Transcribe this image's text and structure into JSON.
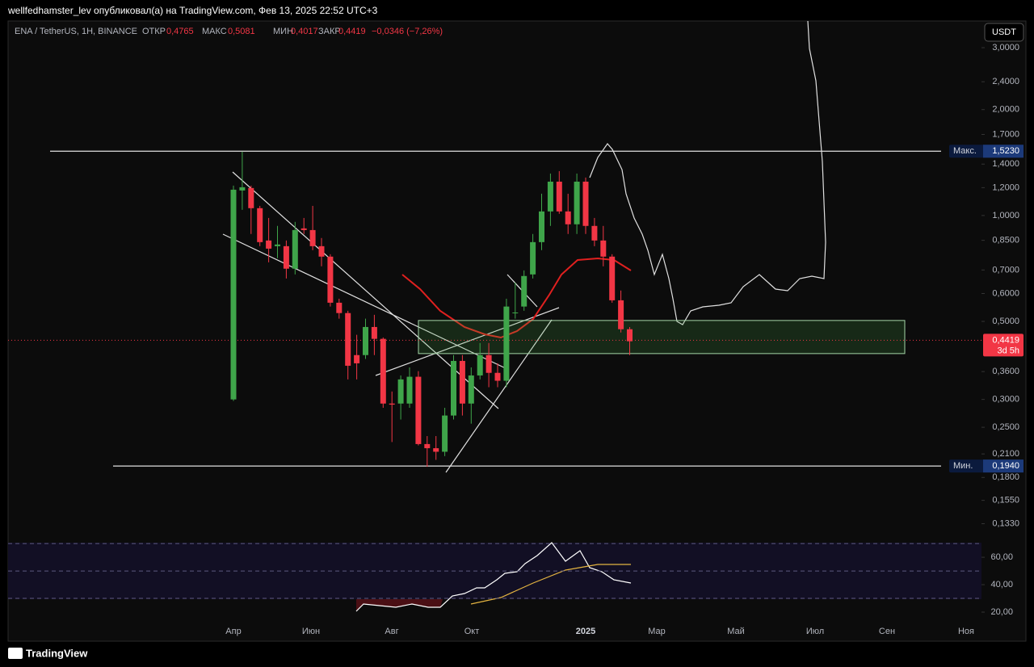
{
  "header": {
    "title": "wellfedhamster_lev опубликовал(а) на TradingView.com, Фев 13, 2025 22:52 UTC+3"
  },
  "legend": {
    "symbol": "ENA / TetherUS, 1H, BINANCE",
    "open_label": "ОТКР",
    "open": "0,4765",
    "high_label": "МАКС",
    "high": "0,5081",
    "low_label": "МИН",
    "low": "0,4017",
    "close_label": "ЗАКР",
    "close": "0,4419",
    "change": "−0,0346 (−7,26%)"
  },
  "currency": "USDT",
  "footer": {
    "brand": "TradingView"
  },
  "chart_data": {
    "type": "candlestick",
    "log_scale": true,
    "ylim": [
      0.12,
      3.572
    ],
    "yticks": [
      {
        "value": 3,
        "label": "3,0000"
      },
      {
        "value": 2.4,
        "label": "2,4000"
      },
      {
        "value": 2,
        "label": "2,0000"
      },
      {
        "value": 1.7,
        "label": "1,7000"
      },
      {
        "value": 1.4,
        "label": "1,4000"
      },
      {
        "value": 1.2,
        "label": "1,2000"
      },
      {
        "value": 1,
        "label": "1,0000"
      },
      {
        "value": 0.85,
        "label": "0,8500"
      },
      {
        "value": 0.7,
        "label": "0,7000"
      },
      {
        "value": 0.6,
        "label": "0,6000"
      },
      {
        "value": 0.5,
        "label": "0,5000"
      },
      {
        "value": 0.36,
        "label": "0,3600"
      },
      {
        "value": 0.3,
        "label": "0,3000"
      },
      {
        "value": 0.25,
        "label": "0,2500"
      },
      {
        "value": 0.21,
        "label": "0,2100"
      },
      {
        "value": 0.18,
        "label": "0,1800"
      },
      {
        "value": 0.155,
        "label": "0,1550"
      },
      {
        "value": 0.133,
        "label": "0,1330"
      }
    ],
    "xticks": [
      "Апр",
      "Июн",
      "Авг",
      "Окт",
      "2025",
      "Мар",
      "Май",
      "Июл",
      "Сен",
      "Ноя"
    ],
    "up_color": "#3fa54a",
    "down_color": "#f23645",
    "max_line": {
      "label": "Макс.",
      "value": 1.523,
      "value_label": "1,5230"
    },
    "min_line": {
      "label": "Мин.",
      "value": 0.194,
      "value_label": "0,1940"
    },
    "last_price": {
      "value": 0.4419,
      "value_label": "0,4419",
      "countdown": "3d 5h"
    },
    "zone": [
      0.405,
      0.503
    ],
    "candles": [
      {
        "o": 0.3,
        "h": 1.216,
        "l": 0.297,
        "c": 1.184
      },
      {
        "o": 1.178,
        "h": 1.518,
        "l": 1.038,
        "c": 1.203
      },
      {
        "o": 1.197,
        "h": 1.216,
        "l": 0.886,
        "c": 1.049
      },
      {
        "o": 1.049,
        "h": 1.065,
        "l": 0.818,
        "c": 0.84
      },
      {
        "o": 0.849,
        "h": 0.984,
        "l": 0.736,
        "c": 0.805
      },
      {
        "o": 0.818,
        "h": 0.934,
        "l": 0.756,
        "c": 0.827
      },
      {
        "o": 0.818,
        "h": 0.849,
        "l": 0.662,
        "c": 0.706
      },
      {
        "o": 0.706,
        "h": 0.959,
        "l": 0.68,
        "c": 0.909
      },
      {
        "o": 0.919,
        "h": 0.984,
        "l": 0.886,
        "c": 0.909
      },
      {
        "o": 0.909,
        "h": 1.065,
        "l": 0.797,
        "c": 0.818
      },
      {
        "o": 0.818,
        "h": 0.863,
        "l": 0.717,
        "c": 0.764
      },
      {
        "o": 0.764,
        "h": 0.776,
        "l": 0.551,
        "c": 0.565
      },
      {
        "o": 0.565,
        "h": 0.58,
        "l": 0.509,
        "c": 0.528
      },
      {
        "o": 0.528,
        "h": 0.536,
        "l": 0.342,
        "c": 0.374
      },
      {
        "o": 0.401,
        "h": 0.458,
        "l": 0.342,
        "c": 0.38
      },
      {
        "o": 0.401,
        "h": 0.509,
        "l": 0.391,
        "c": 0.482
      },
      {
        "o": 0.482,
        "h": 0.522,
        "l": 0.401,
        "c": 0.446
      },
      {
        "o": 0.446,
        "h": 0.45,
        "l": 0.284,
        "c": 0.292
      },
      {
        "o": 0.292,
        "h": 0.316,
        "l": 0.227,
        "c": 0.29
      },
      {
        "o": 0.292,
        "h": 0.351,
        "l": 0.263,
        "c": 0.342
      },
      {
        "o": 0.292,
        "h": 0.37,
        "l": 0.284,
        "c": 0.348
      },
      {
        "o": 0.348,
        "h": 0.361,
        "l": 0.222,
        "c": 0.224
      },
      {
        "o": 0.224,
        "h": 0.236,
        "l": 0.193,
        "c": 0.218
      },
      {
        "o": 0.218,
        "h": 0.236,
        "l": 0.202,
        "c": 0.213
      },
      {
        "o": 0.213,
        "h": 0.284,
        "l": 0.207,
        "c": 0.27
      },
      {
        "o": 0.27,
        "h": 0.401,
        "l": 0.263,
        "c": 0.386
      },
      {
        "o": 0.386,
        "h": 0.401,
        "l": 0.27,
        "c": 0.292
      },
      {
        "o": 0.292,
        "h": 0.37,
        "l": 0.256,
        "c": 0.351
      },
      {
        "o": 0.351,
        "h": 0.434,
        "l": 0.342,
        "c": 0.401
      },
      {
        "o": 0.401,
        "h": 0.434,
        "l": 0.325,
        "c": 0.357
      },
      {
        "o": 0.357,
        "h": 0.38,
        "l": 0.325,
        "c": 0.339
      },
      {
        "o": 0.339,
        "h": 0.58,
        "l": 0.325,
        "c": 0.551
      },
      {
        "o": 0.528,
        "h": 0.645,
        "l": 0.509,
        "c": 0.53
      },
      {
        "o": 0.551,
        "h": 0.698,
        "l": 0.536,
        "c": 0.673
      },
      {
        "o": 0.68,
        "h": 0.886,
        "l": 0.662,
        "c": 0.84
      },
      {
        "o": 0.84,
        "h": 1.153,
        "l": 0.797,
        "c": 1.027
      },
      {
        "o": 1.027,
        "h": 1.316,
        "l": 0.934,
        "c": 1.248
      },
      {
        "o": 1.248,
        "h": 1.337,
        "l": 1.011,
        "c": 1.027
      },
      {
        "o": 1.027,
        "h": 1.153,
        "l": 0.886,
        "c": 0.944
      },
      {
        "o": 0.944,
        "h": 1.316,
        "l": 0.886,
        "c": 1.248
      },
      {
        "o": 1.248,
        "h": 1.282,
        "l": 0.886,
        "c": 0.934
      },
      {
        "o": 0.934,
        "h": 0.984,
        "l": 0.818,
        "c": 0.849
      },
      {
        "o": 0.849,
        "h": 0.934,
        "l": 0.717,
        "c": 0.764
      },
      {
        "o": 0.764,
        "h": 0.776,
        "l": 0.565,
        "c": 0.574
      },
      {
        "o": 0.574,
        "h": 0.612,
        "l": 0.465,
        "c": 0.475
      },
      {
        "o": 0.475,
        "h": 0.482,
        "l": 0.401,
        "c": 0.439
      }
    ],
    "rsi": {
      "ylim": [
        10,
        73
      ],
      "yticks": [
        {
          "value": 60,
          "label": "60,00"
        },
        {
          "value": 40,
          "label": "40,00"
        },
        {
          "value": 20,
          "label": "20,00"
        }
      ],
      "levels": [
        70,
        50,
        30
      ]
    }
  }
}
